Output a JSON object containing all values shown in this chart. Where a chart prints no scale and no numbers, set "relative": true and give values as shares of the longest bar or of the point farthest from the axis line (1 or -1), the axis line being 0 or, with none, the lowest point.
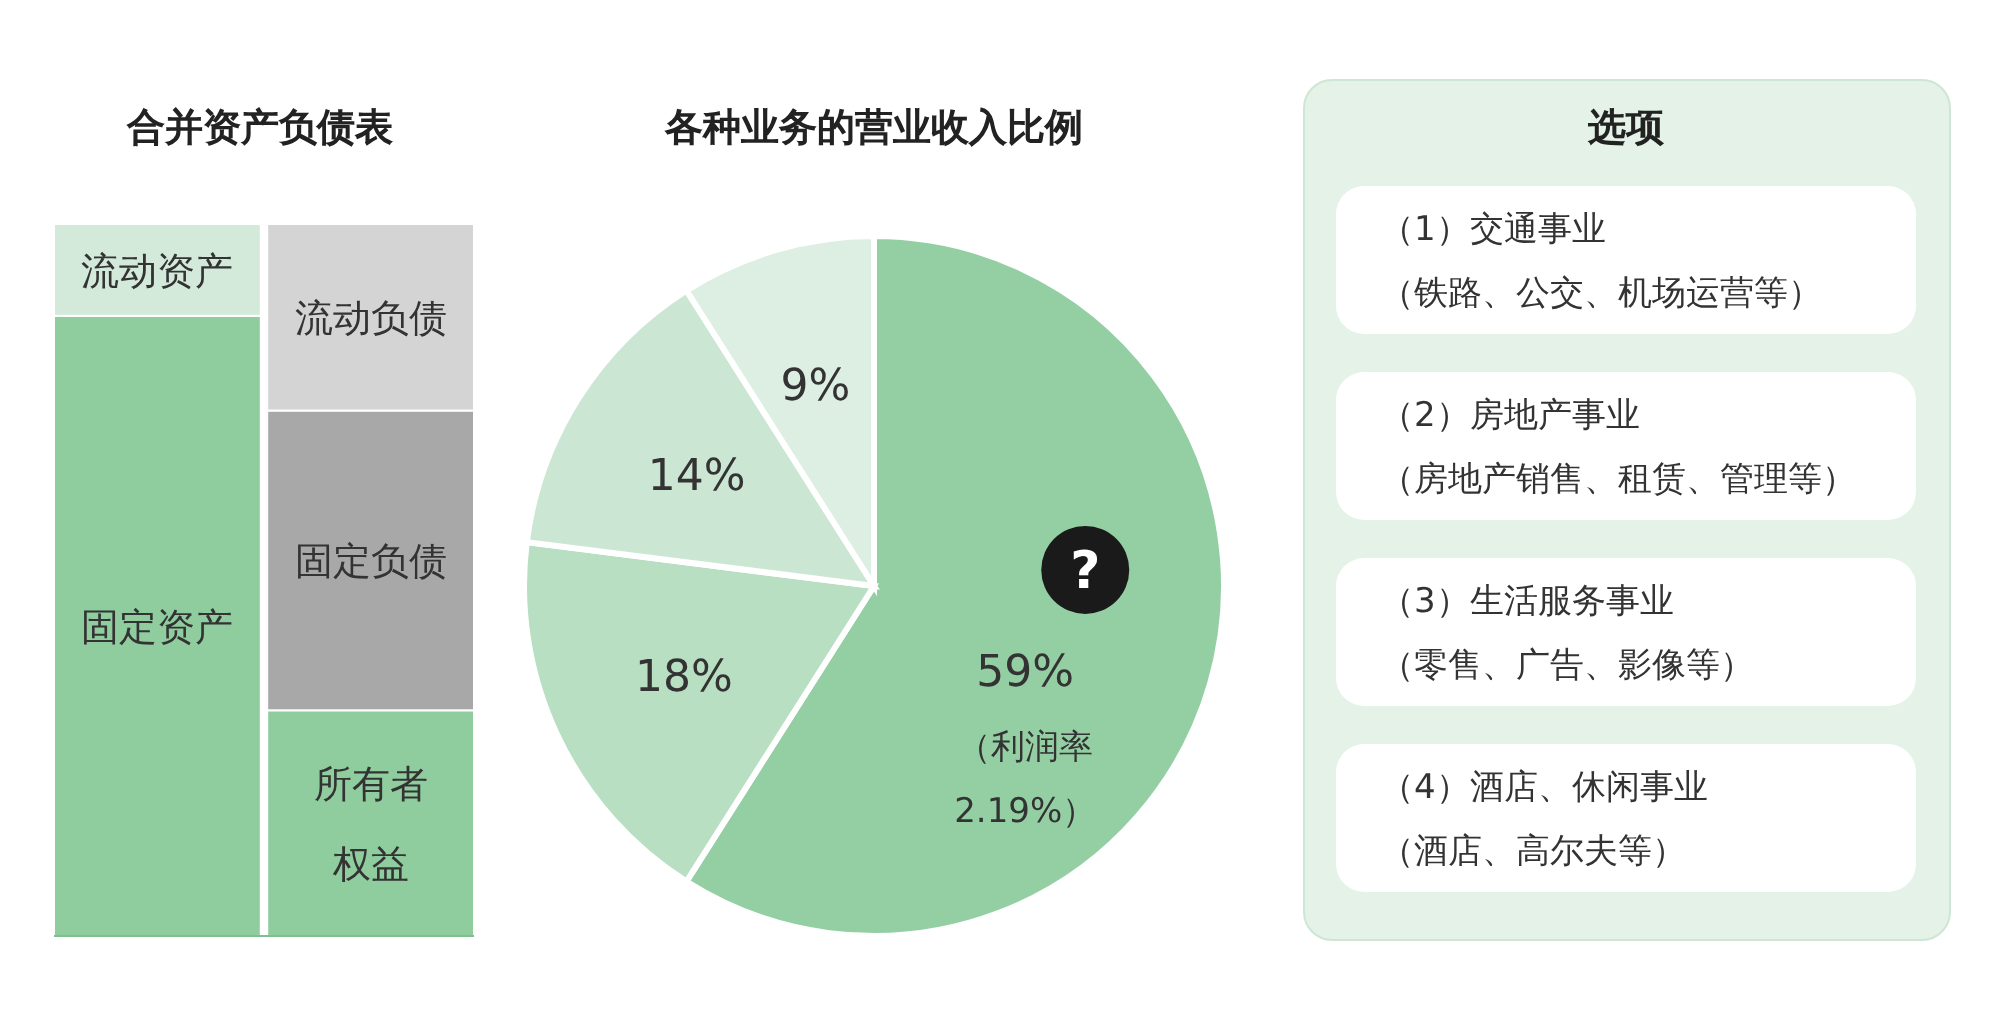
{
  "chart_data": [
    {
      "type": "bar",
      "title": "合并资产负债表",
      "relative": true,
      "stacked": true,
      "categories": [
        null,
        null
      ],
      "series": [
        {
          "name": "固定资产",
          "color": "#8fcd9f",
          "values": [
            0.871,
            null
          ]
        },
        {
          "name": "流动资产",
          "color": "#d3eadb",
          "values": [
            0.129,
            null
          ]
        },
        {
          "name": "所有者权益",
          "color": "#8fcd9f",
          "values": [
            null,
            0.317
          ]
        },
        {
          "name": "固定负债",
          "color": "#a8a8a8",
          "values": [
            null,
            0.421
          ]
        },
        {
          "name": "流动负债",
          "color": "#d4d4d4",
          "values": [
            null,
            0.262
          ]
        }
      ]
    },
    {
      "type": "pie",
      "title": "各种业务的营业收入比例",
      "categories": [
        null,
        null,
        null,
        null
      ],
      "values": [
        59,
        18,
        14,
        9
      ],
      "colors": [
        "#94cfa4",
        "#b8dfc2",
        "#cbe7d3",
        "#dcefe2"
      ],
      "value_labels": [
        "59%",
        "18%",
        "14%",
        "9%"
      ],
      "annotations": [
        "?",
        "（利润率\n2.19%）"
      ]
    },
    {
      "type": "other",
      "title": "选项",
      "annotations": [
        "（1）交通事业",
        "（铁路、公交、机场运营等）",
        "（2）房地产事业",
        "（房地产销售、租赁、管理等）",
        "（3）生活服务事业",
        "（零售、广告、影像等）",
        "（4）酒店、休闲事业",
        "（酒店、高尔夫等）"
      ]
    }
  ]
}
